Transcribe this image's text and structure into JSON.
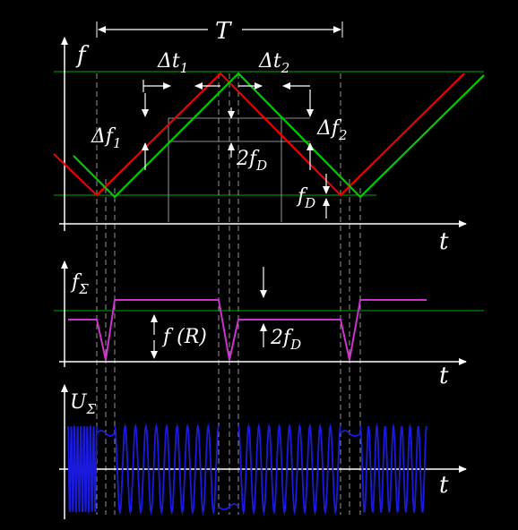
{
  "labels": {
    "period": "T",
    "f": "f",
    "t1": "t",
    "t2": "t",
    "t3": "t",
    "dt1": "Δt",
    "dt1_sub": "1",
    "dt2": "Δt",
    "dt2_sub": "2",
    "df1": "Δf",
    "df1_sub": "1",
    "df2": "Δf",
    "df2_sub": "2",
    "two_fd": "2f",
    "two_fd_sub": "D",
    "fd": "f",
    "fd_sub": "D",
    "f_sigma": "f",
    "f_sigma_sub": "Σ",
    "f_r": "f (R)",
    "two_fd_b": "2f",
    "two_fd_b_sub": "D",
    "u_sigma": "U",
    "u_sigma_sub": "Σ"
  },
  "colors": {
    "background": "#000000",
    "axes": "#ffffff",
    "transmitted": "#ff0000",
    "received": "#00cc00",
    "beat": "#cc33cc",
    "signal": "#1a1adc",
    "guide": "#cccccc"
  }
}
